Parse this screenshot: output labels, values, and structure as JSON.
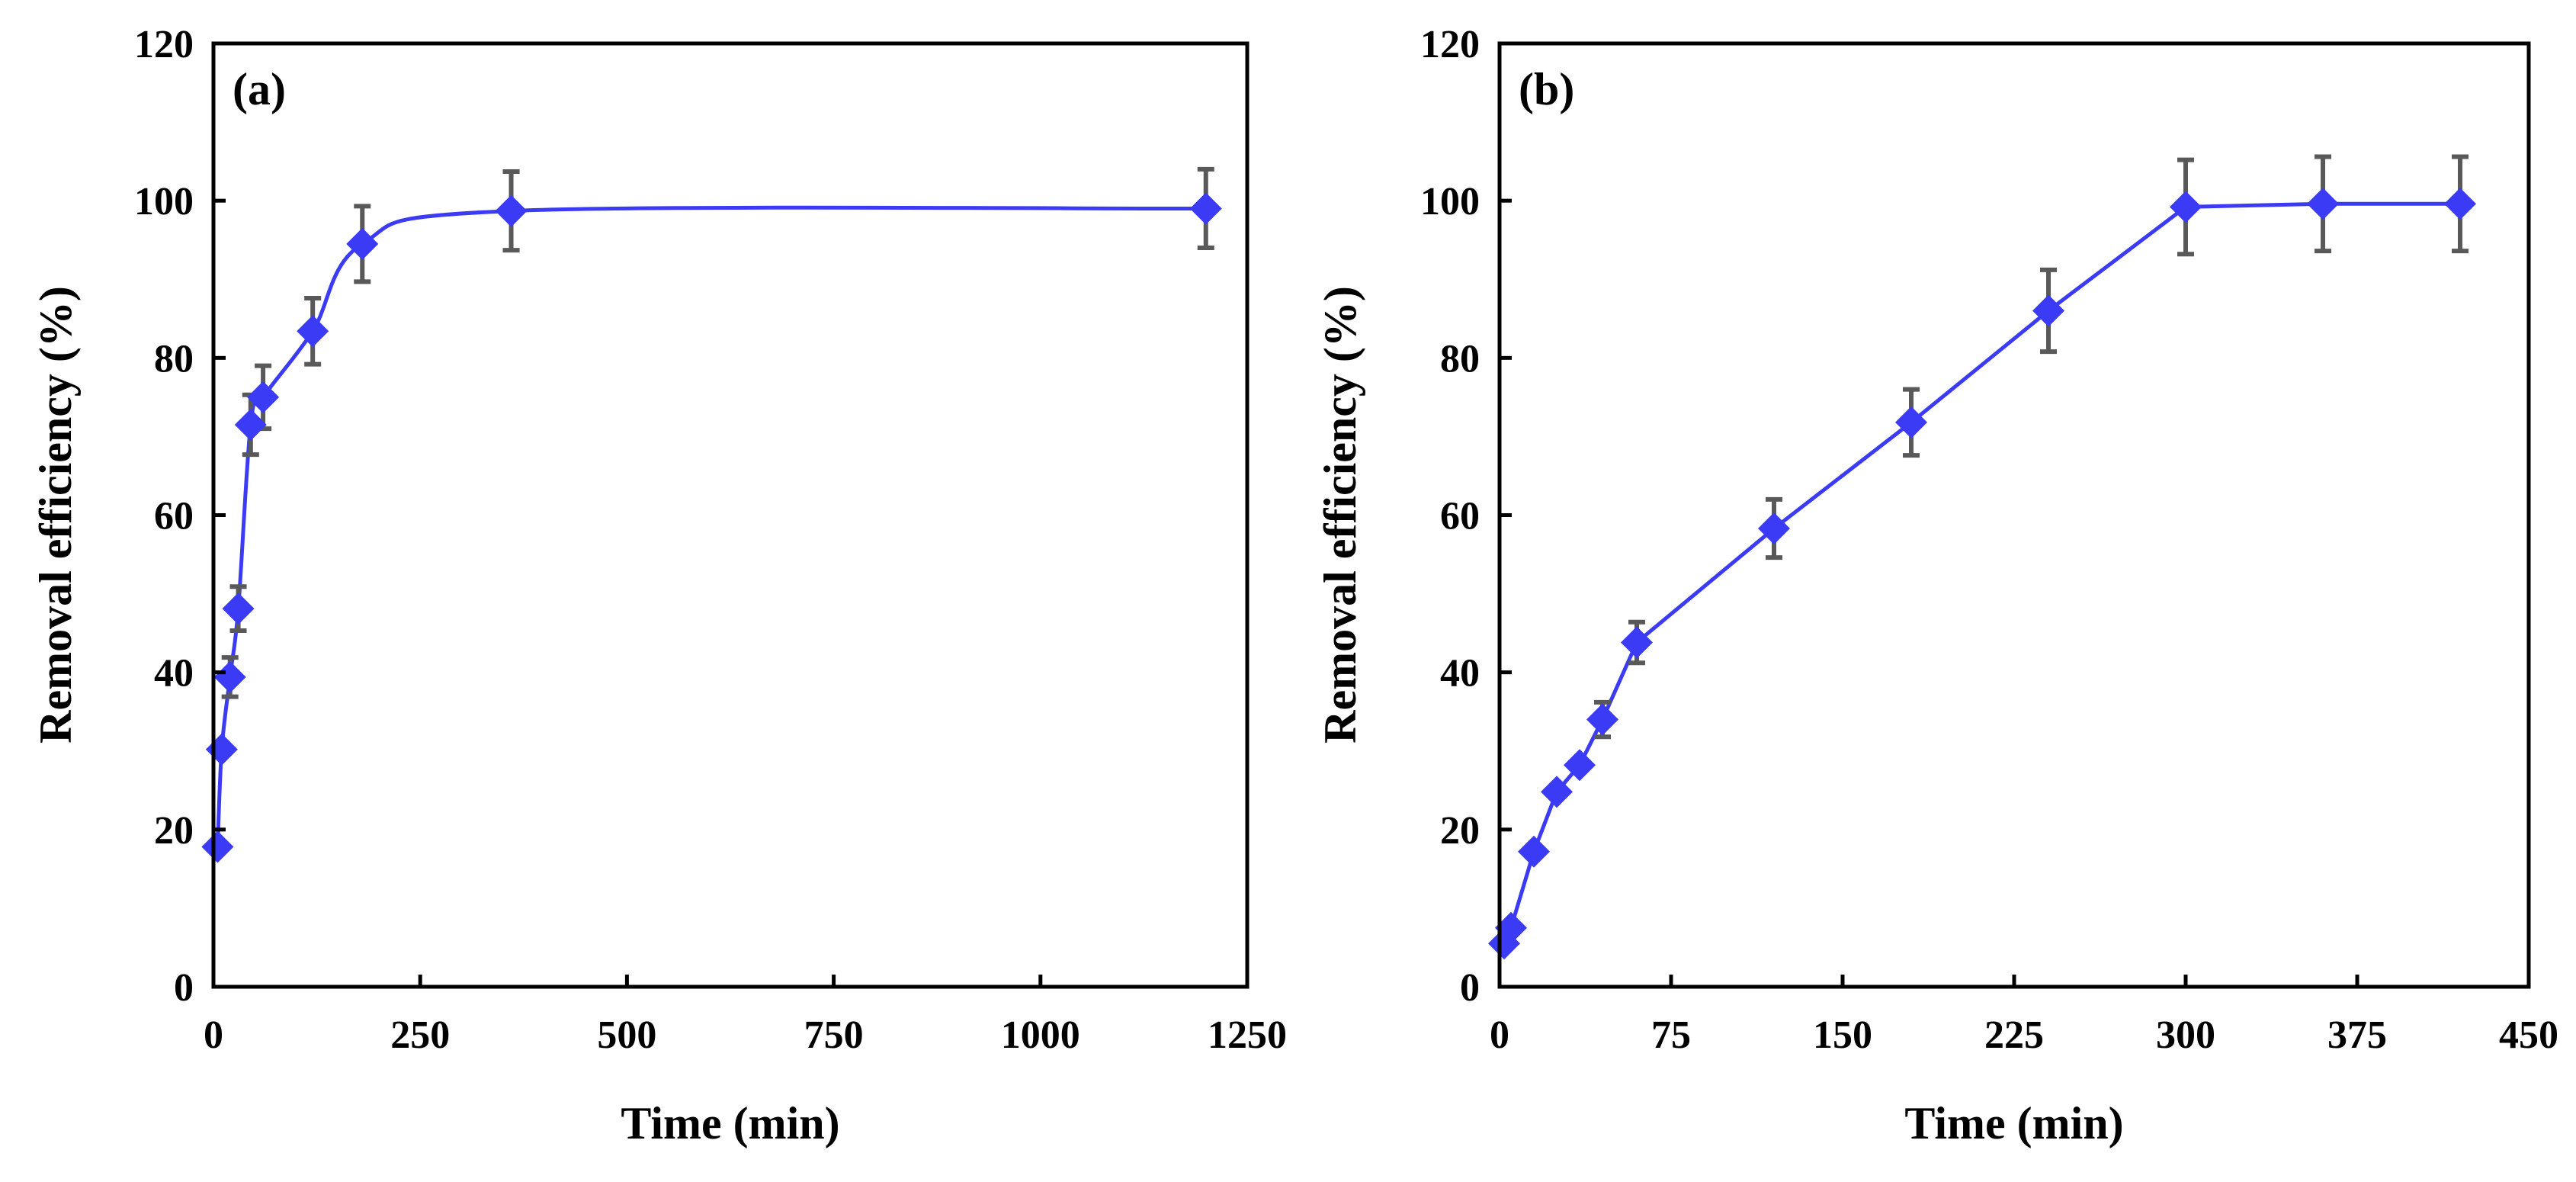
{
  "colors": {
    "series": "#3b3bf5",
    "error_bar": "#595959",
    "axis": "#000000"
  },
  "chart_data": [
    {
      "type": "line",
      "panel_label": "(a)",
      "smooth": true,
      "title": "",
      "xlabel": "Time (min)",
      "ylabel": "Removal efficiency (%)",
      "xlim": [
        0,
        1250
      ],
      "ylim": [
        0,
        120
      ],
      "xticks": [
        0,
        250,
        500,
        750,
        1000,
        1250
      ],
      "yticks": [
        0,
        20,
        40,
        60,
        80,
        100,
        120
      ],
      "xtick_labels": [
        "0",
        "250",
        "500",
        "750",
        "1000",
        "1250"
      ],
      "ytick_labels": [
        "0",
        "20",
        "40",
        "60",
        "80",
        "100",
        "120"
      ],
      "grid": false,
      "series": [
        {
          "name": "Removal efficiency",
          "marker": "diamond",
          "x": [
            5,
            10,
            20,
            30,
            45,
            60,
            120,
            180,
            360,
            1200
          ],
          "y": [
            17.8,
            30.2,
            39.4,
            48.1,
            71.5,
            75.0,
            83.4,
            94.5,
            98.7,
            99.0
          ],
          "error": [
            0,
            0,
            2.5,
            2.8,
            3.8,
            4.0,
            4.2,
            4.8,
            5.0,
            5.0
          ]
        }
      ]
    },
    {
      "type": "line",
      "panel_label": "(b)",
      "smooth": false,
      "title": "",
      "xlabel": "Time (min)",
      "ylabel": "Removal efficiency (%)",
      "xlim": [
        0,
        450
      ],
      "ylim": [
        0,
        120
      ],
      "xticks": [
        0,
        75,
        150,
        225,
        300,
        375,
        450
      ],
      "yticks": [
        0,
        20,
        40,
        60,
        80,
        100,
        120
      ],
      "xtick_labels": [
        "0",
        "75",
        "150",
        "225",
        "300",
        "375",
        "450"
      ],
      "ytick_labels": [
        "0",
        "20",
        "40",
        "60",
        "80",
        "100",
        "120"
      ],
      "grid": false,
      "series": [
        {
          "name": "Removal efficiency",
          "marker": "diamond",
          "x": [
            2,
            5,
            15,
            25,
            35,
            45,
            60,
            120,
            180,
            240,
            300,
            360,
            420
          ],
          "y": [
            5.5,
            7.5,
            17.2,
            24.8,
            28.2,
            34.0,
            43.8,
            58.3,
            71.8,
            86.0,
            99.2,
            99.6,
            99.6
          ],
          "error": [
            0,
            0,
            0,
            0,
            0,
            2.2,
            2.6,
            3.7,
            4.2,
            5.2,
            6.0,
            6.0,
            6.0
          ]
        }
      ]
    }
  ]
}
